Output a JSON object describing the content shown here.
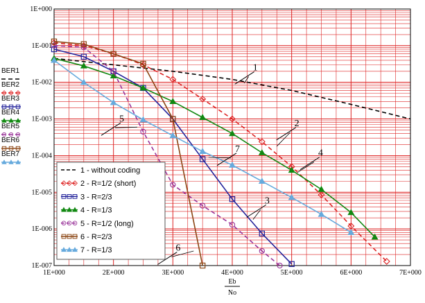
{
  "chart_data": {
    "type": "line",
    "x_axis": {
      "label_numerator": "Eb",
      "label_denominator": "No",
      "range": [
        1,
        7
      ],
      "tick_values": [
        1,
        2,
        3,
        4,
        5,
        6,
        7
      ],
      "tick_labels": [
        "1E+000",
        "2E+000",
        "3E+000",
        "4E+000",
        "5E+000",
        "6E+000",
        "7E+000"
      ]
    },
    "y_axis": {
      "scale": "log",
      "range": [
        1e-07,
        1
      ],
      "tick_values": [
        1,
        0.1,
        0.01,
        0.001,
        0.0001,
        1e-05,
        1e-06,
        1e-07
      ],
      "tick_labels": [
        "1E+000",
        "1E-001",
        "1E-002",
        "1E-003",
        "1E-004",
        "1E-005",
        "1E-006",
        "1E-007"
      ]
    },
    "grid": true,
    "grid_color": "#dd2222",
    "side_labels": [
      "BER1",
      "BER2",
      "BER3",
      "BER4",
      "BER5",
      "BER6",
      "BER7"
    ],
    "legend": {
      "placement": "bottom-left",
      "entries": [
        "1 - without coding",
        "2 - R=1/2 (short)",
        "3 - R=2/3",
        "4 - R=1/3",
        "5 - R=1/2 (long)",
        "6 - R=2/3",
        "7 - R=1/3"
      ]
    },
    "series": [
      {
        "id": "1",
        "color": "#000000",
        "dash": "6,4",
        "marker": "none",
        "x": [
          1,
          2,
          3,
          4,
          5,
          6,
          7
        ],
        "y": [
          0.045,
          0.03,
          0.02,
          0.012,
          0.006,
          0.0025,
          0.001
        ]
      },
      {
        "id": "2",
        "color": "#dd2222",
        "dash": "6,4",
        "marker": "diamond",
        "x": [
          1,
          1.5,
          2,
          2.5,
          3,
          3.5,
          4,
          4.5,
          5,
          5.5,
          6,
          6.6
        ],
        "y": [
          0.12,
          0.1,
          0.06,
          0.03,
          0.012,
          0.0035,
          0.001,
          0.00024,
          5e-05,
          8.5e-06,
          1.2e-06,
          1.3e-07
        ]
      },
      {
        "id": "3",
        "color": "#22229a",
        "dash": "",
        "marker": "square",
        "x": [
          1,
          1.5,
          2,
          2.5,
          3,
          3.5,
          4,
          4.5,
          5
        ],
        "y": [
          0.08,
          0.05,
          0.02,
          0.007,
          0.001,
          8e-05,
          6.5e-06,
          7.5e-07,
          1.1e-07
        ]
      },
      {
        "id": "4",
        "color": "#118811",
        "dash": "",
        "marker": "triangle",
        "x": [
          1,
          1.5,
          2,
          2.5,
          3,
          3.5,
          4,
          4.5,
          5,
          5.5,
          6,
          6.4
        ],
        "y": [
          0.045,
          0.028,
          0.015,
          0.007,
          0.003,
          0.0011,
          0.0004,
          0.00012,
          4e-05,
          1.2e-05,
          2.8e-06,
          6e-07
        ]
      },
      {
        "id": "5",
        "color": "#993399",
        "dash": "6,4",
        "marker": "circle",
        "x": [
          1,
          1.5,
          2,
          2.5,
          3,
          3.5,
          4,
          4.5,
          4.8
        ],
        "y": [
          0.1,
          0.09,
          0.02,
          0.00045,
          1.6e-05,
          4.3e-06,
          1.3e-06,
          2.5e-07,
          1e-07
        ]
      },
      {
        "id": "6",
        "color": "#8b4513",
        "dash": "",
        "marker": "square",
        "x": [
          1,
          1.5,
          2,
          2.5,
          3,
          3.5
        ],
        "y": [
          0.13,
          0.11,
          0.06,
          0.032,
          0.001,
          1e-07
        ]
      },
      {
        "id": "7",
        "color": "#66aadd",
        "dash": "",
        "marker": "triangle",
        "x": [
          1,
          1.5,
          2,
          2.5,
          3,
          3.5,
          4,
          4.5,
          5,
          5.5,
          6
        ],
        "y": [
          0.04,
          0.01,
          0.0028,
          0.00095,
          0.00035,
          0.00013,
          5.5e-05,
          2e-05,
          7.2e-06,
          2.5e-06,
          8e-07
        ]
      }
    ],
    "annotations": [
      {
        "text": "1",
        "series": "1",
        "x": 4.3,
        "y": 0.015,
        "x2": 4.2,
        "y2": 0.0095
      },
      {
        "text": "2",
        "series": "2",
        "x": 5.0,
        "y": 0.00045,
        "x2": 4.75,
        "y2": 0.00018
      },
      {
        "text": "3",
        "series": "3",
        "x": 4.5,
        "y": 3.5e-06,
        "x2": 4.35,
        "y2": 1.8e-06
      },
      {
        "text": "4",
        "series": "4",
        "x": 5.4,
        "y": 7e-05,
        "x2": 5.1,
        "y2": 3.5e-05
      },
      {
        "text": "5",
        "series": "5",
        "x": 2.05,
        "y": 0.0006,
        "x2": 2.4,
        "y2": 0.0006
      },
      {
        "text": "6",
        "series": "6",
        "x": 3.0,
        "y": 1.8e-07,
        "x2": 3.35,
        "y2": 2.5e-07
      },
      {
        "text": "7",
        "series": "7",
        "x": 4.0,
        "y": 9e-05,
        "x2": 3.6,
        "y2": 9e-05
      }
    ]
  }
}
